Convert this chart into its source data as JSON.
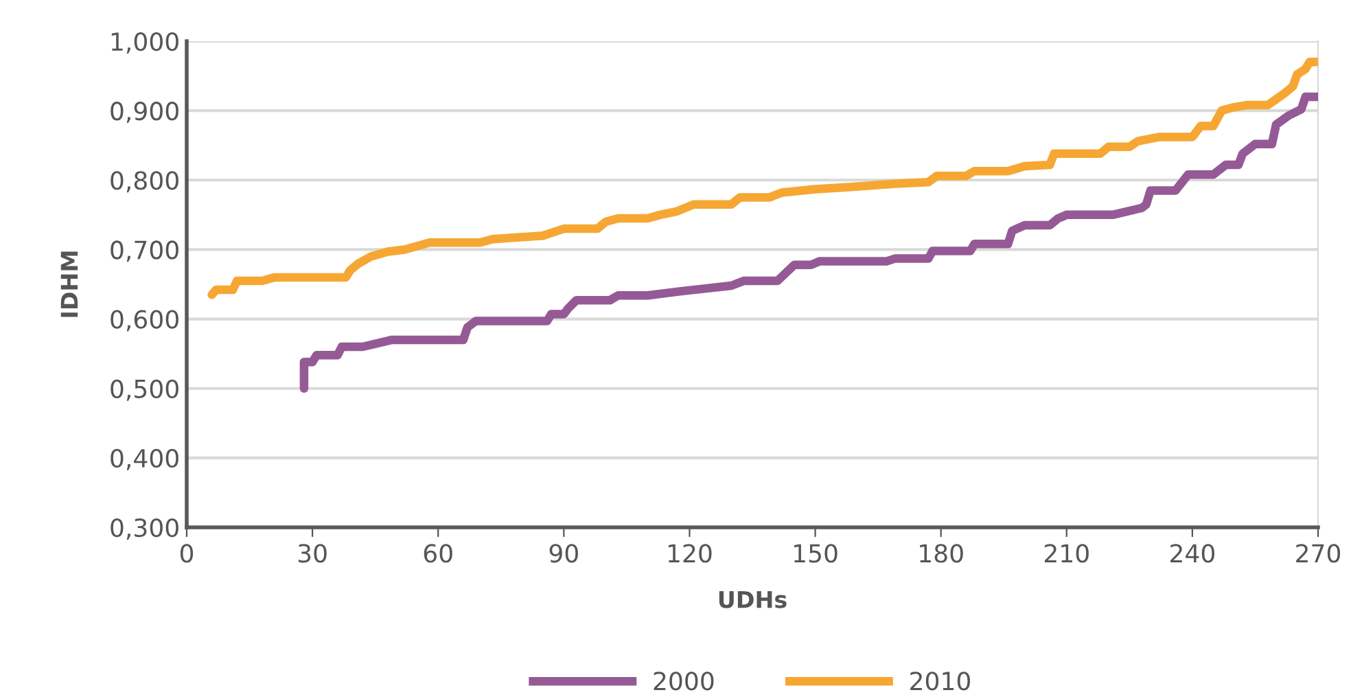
{
  "chart_data": {
    "type": "line",
    "xlabel": "UDHs",
    "ylabel": "IDHM",
    "xlim": [
      0,
      270
    ],
    "xticks": [
      0,
      30,
      60,
      90,
      120,
      150,
      180,
      210,
      240,
      270
    ],
    "ylim": [
      0.3,
      1.0
    ],
    "yticks": [
      {
        "value": 0.3,
        "label": "0,300"
      },
      {
        "value": 0.4,
        "label": "0,400"
      },
      {
        "value": 0.5,
        "label": "0,500"
      },
      {
        "value": 0.6,
        "label": "0,600"
      },
      {
        "value": 0.7,
        "label": "0,700"
      },
      {
        "value": 0.8,
        "label": "0,800"
      },
      {
        "value": 0.9,
        "label": "0,900"
      },
      {
        "value": 1.0,
        "label": "1,000"
      }
    ],
    "grid": "y",
    "legend": "bottom",
    "line_style": "solid",
    "marker": "none",
    "series": [
      {
        "name": "2000",
        "color": "#955a96",
        "x": [
          28,
          28,
          30,
          31,
          36,
          37,
          42,
          49,
          66,
          67,
          69,
          86,
          87,
          90,
          91,
          93,
          101,
          103,
          110,
          118,
          130,
          133,
          141,
          145,
          149,
          151,
          167,
          169,
          177,
          178,
          187,
          188,
          196,
          197,
          200,
          206,
          208,
          210,
          221,
          228,
          229,
          230,
          236,
          239,
          245,
          248,
          251,
          252,
          255,
          259,
          260,
          263,
          266,
          267,
          270
        ],
        "values": [
          0.5,
          0.538,
          0.538,
          0.548,
          0.548,
          0.56,
          0.56,
          0.57,
          0.57,
          0.588,
          0.597,
          0.597,
          0.607,
          0.607,
          0.615,
          0.627,
          0.627,
          0.634,
          0.634,
          0.64,
          0.648,
          0.655,
          0.655,
          0.678,
          0.678,
          0.683,
          0.683,
          0.687,
          0.687,
          0.698,
          0.698,
          0.708,
          0.708,
          0.727,
          0.735,
          0.735,
          0.745,
          0.75,
          0.75,
          0.76,
          0.765,
          0.785,
          0.785,
          0.808,
          0.808,
          0.822,
          0.822,
          0.838,
          0.852,
          0.852,
          0.88,
          0.893,
          0.902,
          0.92,
          0.92
        ]
      },
      {
        "name": "2010",
        "color": "#f6a733",
        "x": [
          6,
          7,
          11,
          12,
          18,
          21,
          38,
          39,
          41,
          44,
          48,
          52,
          58,
          70,
          73,
          85,
          90,
          98,
          100,
          103,
          110,
          113,
          117,
          121,
          130,
          132,
          139,
          142,
          150,
          158,
          170,
          177,
          179,
          186,
          188,
          196,
          200,
          206,
          207,
          218,
          220,
          225,
          227,
          232,
          240,
          242,
          245,
          247,
          250,
          253,
          258,
          262,
          264,
          265,
          267,
          268,
          270
        ],
        "values": [
          0.635,
          0.642,
          0.642,
          0.655,
          0.655,
          0.66,
          0.66,
          0.67,
          0.68,
          0.69,
          0.697,
          0.7,
          0.71,
          0.71,
          0.715,
          0.72,
          0.73,
          0.73,
          0.74,
          0.745,
          0.745,
          0.75,
          0.755,
          0.765,
          0.765,
          0.775,
          0.775,
          0.782,
          0.787,
          0.79,
          0.795,
          0.797,
          0.806,
          0.806,
          0.813,
          0.813,
          0.82,
          0.822,
          0.838,
          0.838,
          0.848,
          0.848,
          0.856,
          0.862,
          0.862,
          0.878,
          0.878,
          0.9,
          0.905,
          0.908,
          0.908,
          0.925,
          0.935,
          0.952,
          0.96,
          0.97,
          0.97
        ]
      }
    ]
  }
}
